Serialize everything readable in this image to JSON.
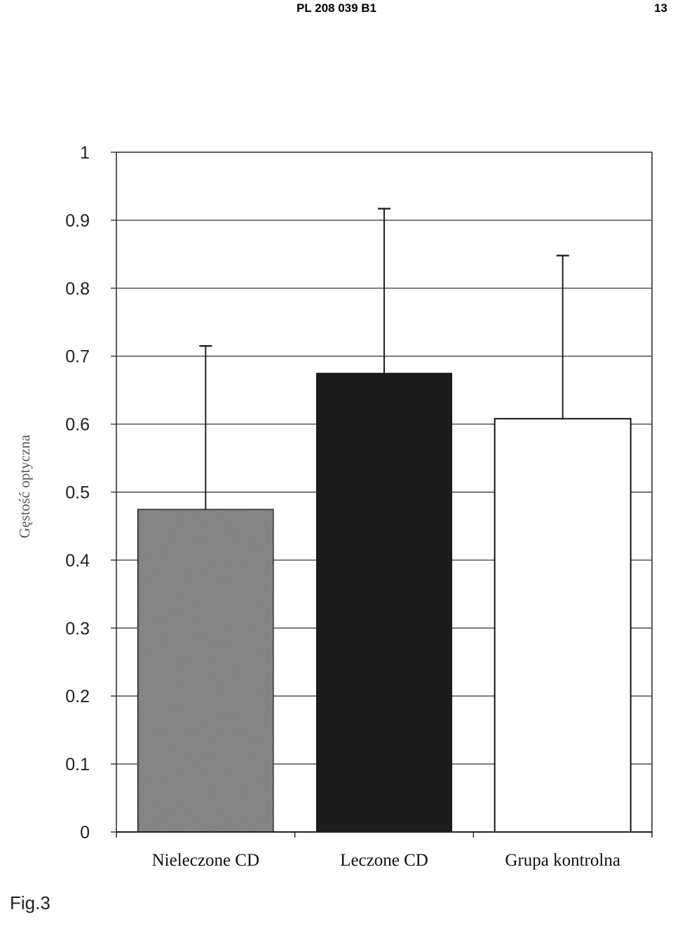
{
  "header": {
    "title": "PL 208 039 B1",
    "page_number": "13"
  },
  "figure": {
    "label": "Fig.3"
  },
  "chart_data": {
    "type": "bar",
    "categories": [
      "Nieleczone CD",
      "Leczone CD",
      "Grupa kontrolna"
    ],
    "values": [
      0.475,
      0.675,
      0.608
    ],
    "error_upper": [
      0.715,
      0.917,
      0.848
    ],
    "ylabel": "Gęstość optyczna",
    "xlabel": "",
    "ylim": [
      0,
      1
    ],
    "yticks": [
      "0",
      "0.1",
      "0.2",
      "0.3",
      "0.4",
      "0.5",
      "0.6",
      "0.7",
      "0.8",
      "0.9",
      "1"
    ],
    "grid": true,
    "bar_fills": [
      "#8a8a8a",
      "#1e1e1e",
      "#ffffff"
    ]
  }
}
